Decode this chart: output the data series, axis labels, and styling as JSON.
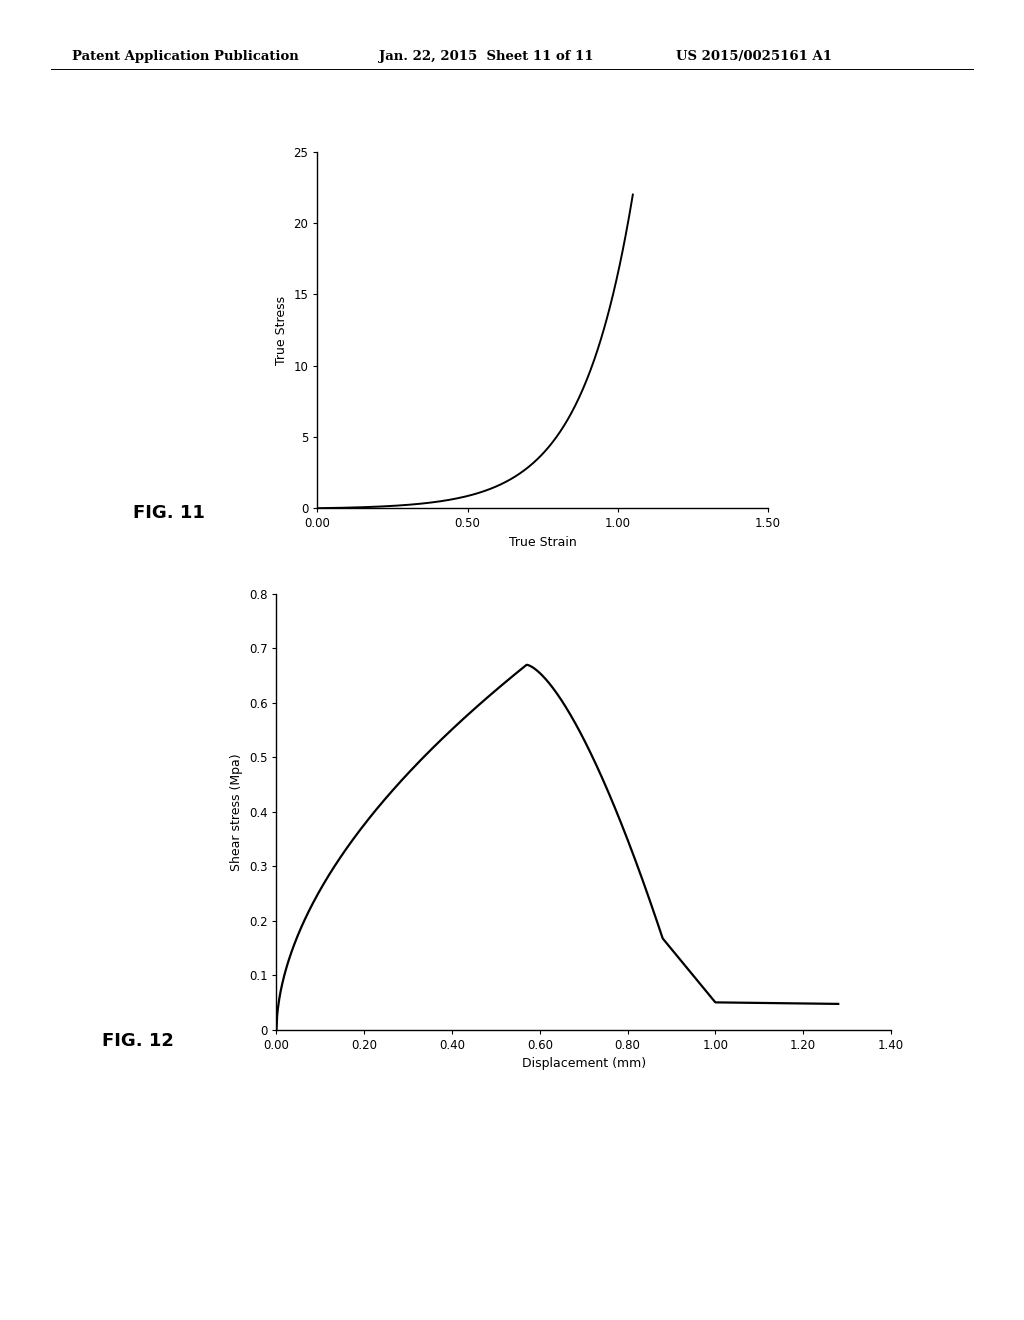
{
  "header_left": "Patent Application Publication",
  "header_mid": "Jan. 22, 2015  Sheet 11 of 11",
  "header_right": "US 2015/0025161 A1",
  "fig11_label": "FIG. 11",
  "fig12_label": "FIG. 12",
  "fig11_xlabel": "True Strain",
  "fig11_ylabel": "True Stress",
  "fig11_xlim": [
    0.0,
    1.5
  ],
  "fig11_ylim": [
    0,
    25
  ],
  "fig11_xticks": [
    0.0,
    0.5,
    1.0,
    1.5
  ],
  "fig11_yticks": [
    0,
    5,
    10,
    15,
    20,
    25
  ],
  "fig12_xlabel": "Displacement (mm)",
  "fig12_ylabel": "Shear stress (Mpa)",
  "fig12_xlim": [
    0.0,
    1.4
  ],
  "fig12_ylim": [
    0,
    0.8
  ],
  "fig12_xticks": [
    0.0,
    0.2,
    0.4,
    0.6,
    0.8,
    1.0,
    1.2,
    1.4
  ],
  "fig12_yticks": [
    0,
    0.1,
    0.2,
    0.3,
    0.4,
    0.5,
    0.6,
    0.7,
    0.8
  ],
  "line_color": "#000000",
  "background_color": "#ffffff",
  "header_fontsize": 9.5,
  "axis_label_fontsize": 9,
  "tick_label_fontsize": 8.5,
  "fig_label_fontsize": 13
}
